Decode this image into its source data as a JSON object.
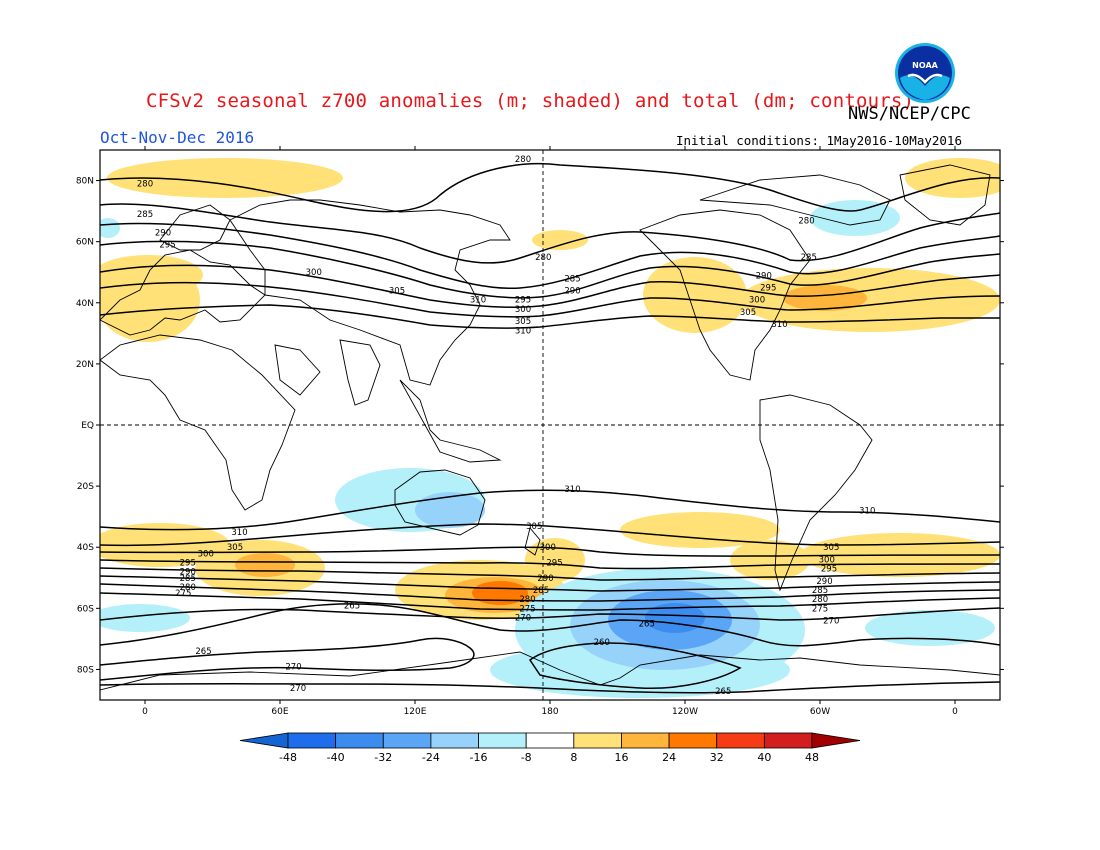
{
  "header": {
    "title": "CFSv2 seasonal z700 anomalies (m; shaded) and total (dm; contours)",
    "agency": "NWS/NCEP/CPC",
    "period": "Oct-Nov-Dec 2016",
    "initial_conditions": "Initial conditions: 1May2016-10May2016",
    "logo_text": "NOAA"
  },
  "map": {
    "lat_labels": [
      "80N",
      "60N",
      "40N",
      "20N",
      "EQ",
      "20S",
      "40S",
      "60S",
      "80S"
    ],
    "lat_values": [
      80,
      60,
      40,
      20,
      0,
      -20,
      -40,
      -60,
      -80
    ],
    "lon_labels": [
      "0",
      "60E",
      "120E",
      "180",
      "120W",
      "60W",
      "0"
    ],
    "lon_values": [
      0,
      60,
      120,
      180,
      240,
      300,
      360
    ],
    "lon_range": [
      -20,
      380
    ],
    "lat_range": [
      -90,
      90
    ]
  },
  "colorbar": {
    "labels": [
      "-48",
      "-40",
      "-32",
      "-24",
      "-16",
      "-8",
      "8",
      "16",
      "24",
      "32",
      "40",
      "48"
    ],
    "colors": [
      "#1464d2",
      "#1e6eeb",
      "#3c8cf0",
      "#5aa5f5",
      "#96d2fa",
      "#b4f0fa",
      "#ffffff",
      "#ffe178",
      "#ffb43c",
      "#ff7800",
      "#f53c14",
      "#d21e1e",
      "#a00000"
    ]
  },
  "contours": {
    "labels": [
      {
        "text": "280",
        "lon": 0,
        "lat": 79
      },
      {
        "text": "285",
        "lon": 0,
        "lat": 69
      },
      {
        "text": "290",
        "lon": 8,
        "lat": 63
      },
      {
        "text": "295",
        "lon": 10,
        "lat": 59
      },
      {
        "text": "300",
        "lon": 75,
        "lat": 50
      },
      {
        "text": "305",
        "lon": 112,
        "lat": 44
      },
      {
        "text": "310",
        "lon": 148,
        "lat": 41
      },
      {
        "text": "280",
        "lon": 168,
        "lat": 87
      },
      {
        "text": "280",
        "lon": 177,
        "lat": 55
      },
      {
        "text": "285",
        "lon": 190,
        "lat": 48
      },
      {
        "text": "290",
        "lon": 190,
        "lat": 44
      },
      {
        "text": "295",
        "lon": 168,
        "lat": 41
      },
      {
        "text": "300",
        "lon": 168,
        "lat": 38
      },
      {
        "text": "305",
        "lon": 168,
        "lat": 34
      },
      {
        "text": "310",
        "lon": 168,
        "lat": 31
      },
      {
        "text": "280",
        "lon": 294,
        "lat": 67
      },
      {
        "text": "285",
        "lon": 295,
        "lat": 55
      },
      {
        "text": "290",
        "lon": 275,
        "lat": 49
      },
      {
        "text": "295",
        "lon": 277,
        "lat": 45
      },
      {
        "text": "300",
        "lon": 272,
        "lat": 41
      },
      {
        "text": "305",
        "lon": 268,
        "lat": 37
      },
      {
        "text": "310",
        "lon": 282,
        "lat": 33
      },
      {
        "text": "310",
        "lon": 190,
        "lat": -21
      },
      {
        "text": "310",
        "lon": 321,
        "lat": -28
      },
      {
        "text": "305",
        "lon": 173,
        "lat": -33
      },
      {
        "text": "310",
        "lon": 42,
        "lat": -35
      },
      {
        "text": "305",
        "lon": 40,
        "lat": -40
      },
      {
        "text": "300",
        "lon": 27,
        "lat": -42
      },
      {
        "text": "295",
        "lon": 19,
        "lat": -45
      },
      {
        "text": "290",
        "lon": 19,
        "lat": -48
      },
      {
        "text": "285",
        "lon": 19,
        "lat": -50
      },
      {
        "text": "280",
        "lon": 19,
        "lat": -53
      },
      {
        "text": "275",
        "lon": 17,
        "lat": -55
      },
      {
        "text": "300",
        "lon": 179,
        "lat": -40
      },
      {
        "text": "295",
        "lon": 182,
        "lat": -45
      },
      {
        "text": "290",
        "lon": 178,
        "lat": -50
      },
      {
        "text": "285",
        "lon": 176,
        "lat": -54
      },
      {
        "text": "280",
        "lon": 170,
        "lat": -57
      },
      {
        "text": "275",
        "lon": 170,
        "lat": -60
      },
      {
        "text": "270",
        "lon": 168,
        "lat": -63
      },
      {
        "text": "265",
        "lon": 92,
        "lat": -59
      },
      {
        "text": "265",
        "lon": 223,
        "lat": -65
      },
      {
        "text": "260",
        "lon": 203,
        "lat": -71
      },
      {
        "text": "265",
        "lon": 26,
        "lat": -74
      },
      {
        "text": "270",
        "lon": 66,
        "lat": -79
      },
      {
        "text": "270",
        "lon": 68,
        "lat": -86
      },
      {
        "text": "265",
        "lon": 257,
        "lat": -87
      },
      {
        "text": "305",
        "lon": 305,
        "lat": -40
      },
      {
        "text": "300",
        "lon": 303,
        "lat": -44
      },
      {
        "text": "295",
        "lon": 304,
        "lat": -47
      },
      {
        "text": "290",
        "lon": 302,
        "lat": -51
      },
      {
        "text": "285",
        "lon": 300,
        "lat": -54
      },
      {
        "text": "280",
        "lon": 300,
        "lat": -57
      },
      {
        "text": "275",
        "lon": 300,
        "lat": -60
      },
      {
        "text": "270",
        "lon": 305,
        "lat": -64
      }
    ]
  }
}
